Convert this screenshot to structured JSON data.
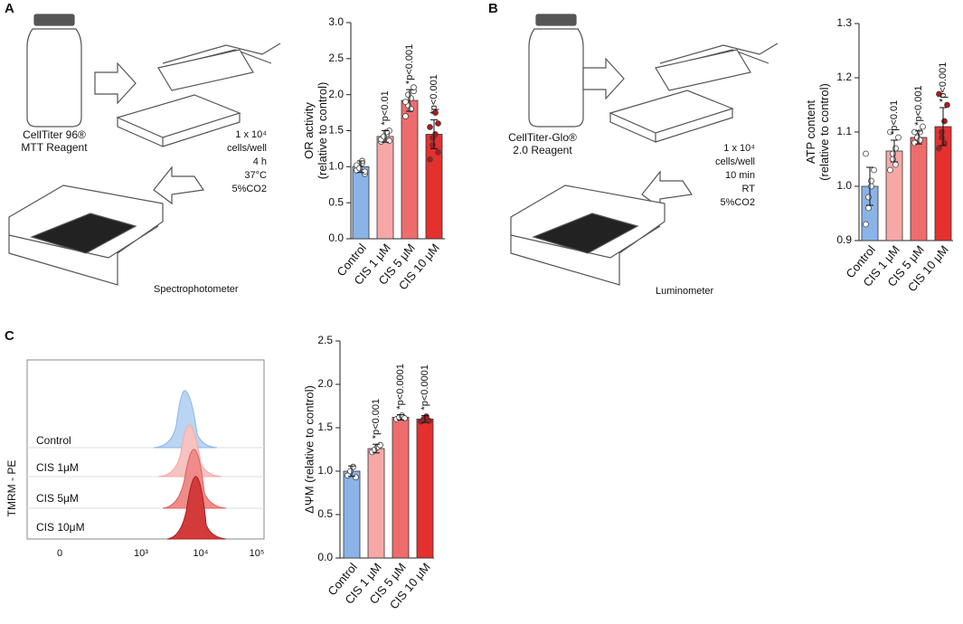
{
  "panel_labels": [
    "A",
    "B",
    "C"
  ],
  "diagram_a": {
    "reagent": [
      "CellTiter 96®",
      "MTT Reagent"
    ],
    "conditions": [
      "1 x 10⁴",
      "cells/well",
      "4 h",
      "37°C",
      "5%CO2"
    ],
    "instrument": "Spectrophotometer"
  },
  "diagram_b": {
    "reagent": [
      "CellTiter-Glo®",
      "2.0 Reagent"
    ],
    "conditions": [
      "1 x 10⁴",
      "cells/well",
      "10 min",
      "RT",
      "5%CO2"
    ],
    "instrument": "Luminometer"
  },
  "histogram": {
    "ylabel": "TMRM - PE",
    "rows": [
      "Control",
      "CIS 1μM",
      "CIS 5μM",
      "CIS 10μM"
    ],
    "xtick_labels": [
      "0",
      "10³",
      "10⁴",
      "10⁵"
    ]
  },
  "chart_data": [
    {
      "type": "bar",
      "ylabel": [
        "OR activity",
        "(relative to control)"
      ],
      "categories": [
        "Control",
        "CIS 1 μM",
        "CIS 5 μM",
        "CIS 10 μM"
      ],
      "colors": [
        "#8ab4e8",
        "#f6a8a6",
        "#ee6c6c",
        "#e5302e"
      ],
      "values": [
        1.0,
        1.42,
        1.92,
        1.45
      ],
      "errors": [
        0.08,
        0.08,
        0.15,
        0.2
      ],
      "points": [
        [
          0.95,
          1.0,
          1.05,
          0.9,
          1.02,
          0.98,
          1.08,
          0.93
        ],
        [
          1.35,
          1.4,
          1.45,
          1.5,
          1.38,
          1.42,
          1.48,
          1.36
        ],
        [
          1.7,
          1.85,
          1.95,
          2.05,
          1.9,
          2.0,
          1.8,
          2.1
        ],
        [
          1.1,
          1.3,
          1.45,
          1.6,
          1.55,
          1.4,
          1.75,
          1.2
        ]
      ],
      "annotations": [
        null,
        "*p<0.01",
        "*p<0.001",
        "*p<0.001"
      ],
      "ylim": [
        0,
        3
      ],
      "yticks": [
        {
          "value": 0,
          "label": "0.0"
        },
        0.5,
        {
          "value": 1,
          "label": "1.0"
        },
        1.5,
        {
          "value": 2,
          "label": "2.0"
        },
        2.5,
        {
          "value": 3,
          "label": "3.0"
        }
      ]
    },
    {
      "type": "bar",
      "ylabel": [
        "ATP content",
        "(relative to control)"
      ],
      "categories": [
        "Control",
        "CIS 1 μM",
        "CIS 5 μM",
        "CIS 10 μM"
      ],
      "colors": [
        "#8ab4e8",
        "#f6a8a6",
        "#ee6c6c",
        "#e5302e"
      ],
      "values": [
        1.0,
        1.065,
        1.09,
        1.11
      ],
      "errors": [
        0.035,
        0.02,
        0.012,
        0.035
      ],
      "points": [
        [
          0.93,
          0.96,
          1.0,
          1.03,
          1.06,
          0.98,
          1.01
        ],
        [
          1.03,
          1.05,
          1.07,
          1.09,
          1.1,
          1.06,
          1.04
        ],
        [
          1.08,
          1.09,
          1.1,
          1.11,
          1.1,
          1.09,
          1.085
        ],
        [
          1.07,
          1.09,
          1.12,
          1.15,
          1.17,
          1.1,
          1.08
        ]
      ],
      "annotations": [
        null,
        "*p<0.01",
        "*p<0.001",
        "*p<0.001"
      ],
      "ylim": [
        0.9,
        1.3
      ],
      "yticks": [
        0.9,
        {
          "value": 1,
          "label": "1.0"
        },
        1.1,
        1.2,
        1.3
      ]
    },
    {
      "type": "bar",
      "ylabel": [
        "ΔΨM (relative to control)"
      ],
      "categories": [
        "Control",
        "CIS 1 μM",
        "CIS 5 μM",
        "CIS 10 μM"
      ],
      "colors": [
        "#8ab4e8",
        "#f6a8a6",
        "#ee6c6c",
        "#e5302e"
      ],
      "values": [
        1.0,
        1.26,
        1.62,
        1.6
      ],
      "errors": [
        0.06,
        0.05,
        0.03,
        0.04
      ],
      "points": [
        [
          0.95,
          1.0,
          1.05,
          0.93
        ],
        [
          1.22,
          1.25,
          1.28,
          1.3
        ],
        [
          1.6,
          1.62,
          1.64,
          1.61
        ],
        [
          1.57,
          1.6,
          1.63,
          1.58
        ]
      ],
      "annotations": [
        null,
        "*p<0.001",
        "*p<0.0001",
        "*p<0.0001"
      ],
      "ylim": [
        0,
        2.5
      ],
      "yticks": [
        {
          "value": 0,
          "label": "0.0"
        },
        0.5,
        {
          "value": 1,
          "label": "1.0"
        },
        1.5,
        {
          "value": 2,
          "label": "2.0"
        },
        2.5
      ]
    }
  ]
}
